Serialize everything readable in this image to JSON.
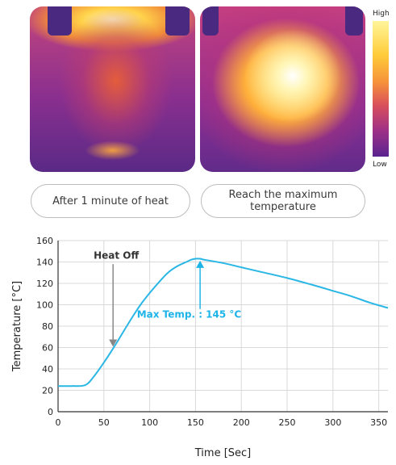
{
  "thermal_images": {
    "left_caption": "After 1 minute of heat",
    "right_caption": "Reach the maximum\ntemperature"
  },
  "colorbar": {
    "high": "High",
    "low": "Low"
  },
  "colors": {
    "line": "#2ab7e6",
    "annotation_dark": "#888888",
    "annotation_blue": "#1fb4e8",
    "grid": "#d9d9d9"
  },
  "chart_data": {
    "type": "line",
    "xlabel": "Time [Sec]",
    "ylabel": "Temperature [°C]",
    "xlim": [
      0,
      360
    ],
    "ylim": [
      0,
      160
    ],
    "x_ticks": [
      0,
      50,
      100,
      150,
      200,
      250,
      300,
      350
    ],
    "y_ticks": [
      0,
      20,
      40,
      60,
      80,
      100,
      120,
      140,
      160
    ],
    "grid": true,
    "series": [
      {
        "x": [
          0,
          15,
          30,
          40,
          50,
          60,
          70,
          80,
          90,
          100,
          110,
          120,
          130,
          140,
          145,
          150,
          155,
          160,
          180,
          200,
          220,
          250,
          280,
          300,
          320,
          340,
          360
        ],
        "y": [
          24,
          24,
          25,
          34,
          46,
          59,
          73,
          87,
          100,
          111,
          121,
          130,
          136,
          140,
          142,
          143,
          143,
          142,
          139,
          135,
          131,
          125,
          118,
          113,
          108,
          102,
          97
        ]
      }
    ],
    "annotations": [
      {
        "text": "Heat Off",
        "x": 60,
        "y": 60
      },
      {
        "text": "Max Temp. : 145 °C",
        "x": 155,
        "y": 145
      }
    ]
  }
}
